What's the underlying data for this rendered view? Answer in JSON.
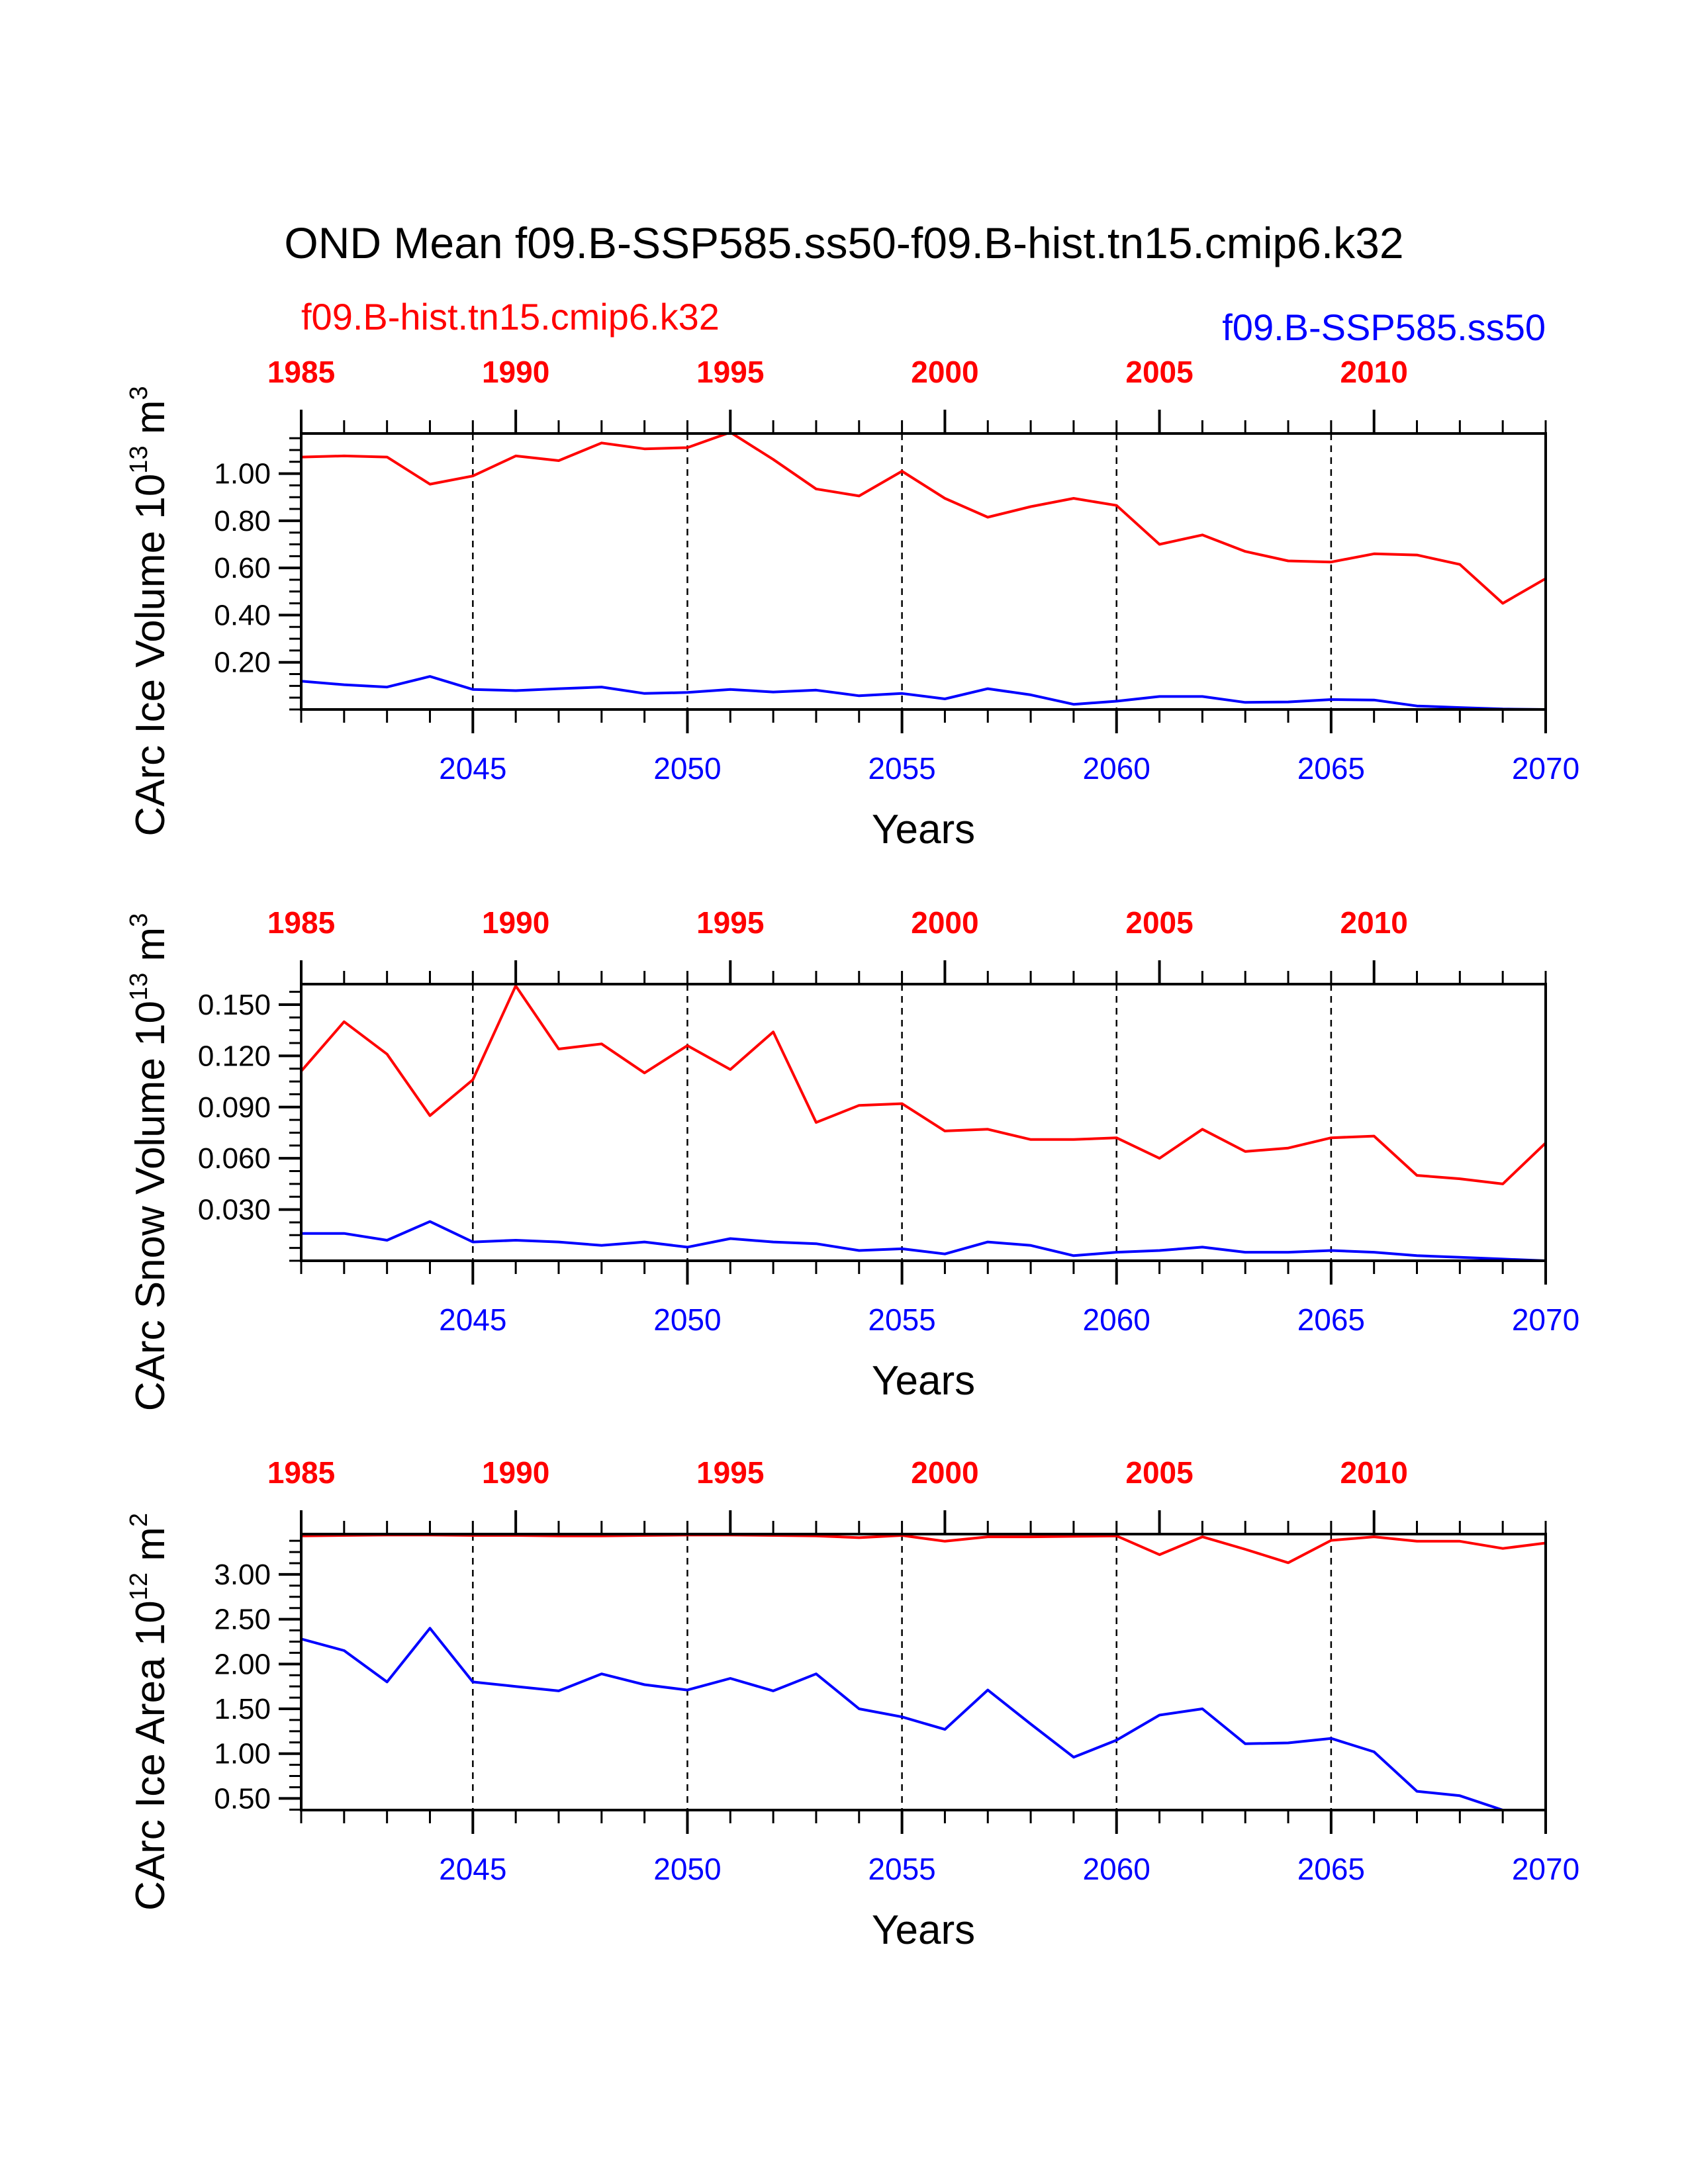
{
  "title": "OND Mean f09.B-SSP585.ss50-f09.B-hist.tn15.cmip6.k32",
  "colors": {
    "hist": "#ff0000",
    "ssp": "#0000ff",
    "axis": "#000000"
  },
  "legend": {
    "hist": "f09.B-hist.tn15.cmip6.k32",
    "ssp": "f09.B-SSP585.ss50"
  },
  "chart_data": [
    {
      "type": "line",
      "ylabel": "CArc Ice Volume 10",
      "ylabel_exp": "13",
      "ylabel_unit": " m",
      "ylabel_unit_exp": "3",
      "xlabel": "Years",
      "ylim": [
        0,
        1.17
      ],
      "yticks": [
        0.2,
        0.4,
        0.6,
        0.8,
        1.0
      ],
      "ytick_labels": [
        "0.20",
        "0.40",
        "0.60",
        "0.80",
        "1.00"
      ],
      "x_bottom": {
        "range": [
          2041,
          2070
        ],
        "major": [
          2045,
          2050,
          2055,
          2060,
          2065,
          2070
        ],
        "labels": [
          "2045",
          "2050",
          "2055",
          "2060",
          "2065",
          "2070"
        ]
      },
      "x_top": {
        "range": [
          1985,
          2014
        ],
        "major": [
          1985,
          1990,
          1995,
          2000,
          2005,
          2010
        ],
        "labels": [
          "1985",
          "1990",
          "1995",
          "2000",
          "2005",
          "2010"
        ]
      },
      "series": [
        {
          "name": "f09.B-hist.tn15.cmip6.k32",
          "axis": "top",
          "color": "#ff0000",
          "x": [
            1985,
            1986,
            1987,
            1988,
            1989,
            1990,
            1991,
            1992,
            1993,
            1994,
            1995,
            1996,
            1997,
            1998,
            1999,
            2000,
            2001,
            2002,
            2003,
            2004,
            2005,
            2006,
            2007,
            2008,
            2009,
            2010,
            2011,
            2012,
            2013,
            2014
          ],
          "values": [
            1.07,
            1.075,
            1.07,
            0.955,
            0.99,
            1.075,
            1.055,
            1.13,
            1.105,
            1.11,
            1.175,
            1.06,
            0.935,
            0.905,
            1.01,
            0.895,
            0.815,
            0.86,
            0.895,
            0.865,
            0.7,
            0.74,
            0.67,
            0.63,
            0.625,
            0.66,
            0.655,
            0.615,
            0.45,
            0.555
          ]
        },
        {
          "name": "f09.B-SSP585.ss50",
          "axis": "bottom",
          "color": "#0000ff",
          "x": [
            2041,
            2042,
            2043,
            2044,
            2045,
            2046,
            2047,
            2048,
            2049,
            2050,
            2051,
            2052,
            2053,
            2054,
            2055,
            2056,
            2057,
            2058,
            2059,
            2060,
            2061,
            2062,
            2063,
            2064,
            2065,
            2066,
            2067,
            2068,
            2069,
            2070
          ],
          "values": [
            0.12,
            0.105,
            0.095,
            0.14,
            0.085,
            0.08,
            0.088,
            0.095,
            0.068,
            0.072,
            0.085,
            0.074,
            0.082,
            0.058,
            0.068,
            0.045,
            0.088,
            0.062,
            0.022,
            0.035,
            0.055,
            0.055,
            0.03,
            0.032,
            0.042,
            0.04,
            0.015,
            0.008,
            0.002,
            0.0
          ]
        }
      ]
    },
    {
      "type": "line",
      "ylabel": "CArc Snow Volume 10",
      "ylabel_exp": "13",
      "ylabel_unit": " m",
      "ylabel_unit_exp": "3",
      "xlabel": "Years",
      "ylim": [
        0,
        0.162
      ],
      "yticks": [
        0.03,
        0.06,
        0.09,
        0.12,
        0.15
      ],
      "ytick_labels": [
        "0.030",
        "0.060",
        "0.090",
        "0.120",
        "0.150"
      ],
      "x_bottom": {
        "range": [
          2041,
          2070
        ],
        "major": [
          2045,
          2050,
          2055,
          2060,
          2065,
          2070
        ],
        "labels": [
          "2045",
          "2050",
          "2055",
          "2060",
          "2065",
          "2070"
        ]
      },
      "x_top": {
        "range": [
          1985,
          2014
        ],
        "major": [
          1985,
          1990,
          1995,
          2000,
          2005,
          2010
        ],
        "labels": [
          "1985",
          "1990",
          "1995",
          "2000",
          "2005",
          "2010"
        ]
      },
      "series": [
        {
          "name": "f09.B-hist.tn15.cmip6.k32",
          "axis": "top",
          "color": "#ff0000",
          "x": [
            1985,
            1986,
            1987,
            1988,
            1989,
            1990,
            1991,
            1992,
            1993,
            1994,
            1995,
            1996,
            1997,
            1998,
            1999,
            2000,
            2001,
            2002,
            2003,
            2004,
            2005,
            2006,
            2007,
            2008,
            2009,
            2010,
            2011,
            2012,
            2013,
            2014
          ],
          "values": [
            0.111,
            0.14,
            0.121,
            0.085,
            0.106,
            0.161,
            0.124,
            0.127,
            0.11,
            0.126,
            0.112,
            0.134,
            0.081,
            0.091,
            0.092,
            0.076,
            0.077,
            0.071,
            0.071,
            0.072,
            0.06,
            0.077,
            0.064,
            0.066,
            0.072,
            0.073,
            0.05,
            0.048,
            0.045,
            0.069
          ]
        },
        {
          "name": "f09.B-SSP585.ss50",
          "axis": "bottom",
          "color": "#0000ff",
          "x": [
            2041,
            2042,
            2043,
            2044,
            2045,
            2046,
            2047,
            2048,
            2049,
            2050,
            2051,
            2052,
            2053,
            2054,
            2055,
            2056,
            2057,
            2058,
            2059,
            2060,
            2061,
            2062,
            2063,
            2064,
            2065,
            2066,
            2067,
            2068,
            2069,
            2070
          ],
          "values": [
            0.016,
            0.016,
            0.012,
            0.023,
            0.011,
            0.012,
            0.011,
            0.009,
            0.011,
            0.008,
            0.013,
            0.011,
            0.01,
            0.006,
            0.007,
            0.004,
            0.011,
            0.009,
            0.003,
            0.005,
            0.006,
            0.008,
            0.005,
            0.005,
            0.006,
            0.005,
            0.003,
            0.002,
            0.001,
            0.0
          ]
        }
      ]
    },
    {
      "type": "line",
      "ylabel": "CArc Ice Area 10",
      "ylabel_exp": "12",
      "ylabel_unit": " m",
      "ylabel_unit_exp": "2",
      "xlabel": "Years",
      "ylim": [
        0.37,
        3.45
      ],
      "yticks": [
        0.5,
        1.0,
        1.5,
        2.0,
        2.5,
        3.0
      ],
      "ytick_labels": [
        "0.50",
        "1.00",
        "1.50",
        "2.00",
        "2.50",
        "3.00"
      ],
      "x_bottom": {
        "range": [
          2041,
          2070
        ],
        "major": [
          2045,
          2050,
          2055,
          2060,
          2065,
          2070
        ],
        "labels": [
          "2045",
          "2050",
          "2055",
          "2060",
          "2065",
          "2070"
        ]
      },
      "x_top": {
        "range": [
          1985,
          2014
        ],
        "major": [
          1985,
          1990,
          1995,
          2000,
          2005,
          2010
        ],
        "labels": [
          "1985",
          "1990",
          "1995",
          "2000",
          "2005",
          "2010"
        ]
      },
      "series": [
        {
          "name": "f09.B-hist.tn15.cmip6.k32",
          "axis": "top",
          "color": "#ff0000",
          "x": [
            1985,
            1986,
            1987,
            1988,
            1989,
            1990,
            1991,
            1992,
            1993,
            1994,
            1995,
            1996,
            1997,
            1998,
            1999,
            2000,
            2001,
            2002,
            2003,
            2004,
            2005,
            2006,
            2007,
            2008,
            2009,
            2010,
            2011,
            2012,
            2013,
            2014
          ],
          "values": [
            3.43,
            3.435,
            3.44,
            3.44,
            3.435,
            3.435,
            3.43,
            3.43,
            3.435,
            3.44,
            3.44,
            3.435,
            3.43,
            3.41,
            3.435,
            3.37,
            3.42,
            3.42,
            3.425,
            3.43,
            3.22,
            3.42,
            3.28,
            3.13,
            3.38,
            3.42,
            3.37,
            3.37,
            3.29,
            3.35
          ]
        },
        {
          "name": "f09.B-SSP585.ss50",
          "axis": "bottom",
          "color": "#0000ff",
          "x": [
            2041,
            2042,
            2043,
            2044,
            2045,
            2046,
            2047,
            2048,
            2049,
            2050,
            2051,
            2052,
            2053,
            2054,
            2055,
            2056,
            2057,
            2058,
            2059,
            2060,
            2061,
            2062,
            2063,
            2064,
            2065,
            2066,
            2067,
            2068,
            2069,
            2070
          ],
          "values": [
            2.28,
            2.15,
            1.8,
            2.4,
            1.8,
            1.75,
            1.7,
            1.89,
            1.77,
            1.71,
            1.84,
            1.7,
            1.89,
            1.5,
            1.41,
            1.27,
            1.71,
            1.33,
            0.96,
            1.15,
            1.43,
            1.5,
            1.11,
            1.12,
            1.17,
            1.02,
            0.58,
            0.53,
            0.37,
            0.37
          ]
        }
      ]
    }
  ]
}
